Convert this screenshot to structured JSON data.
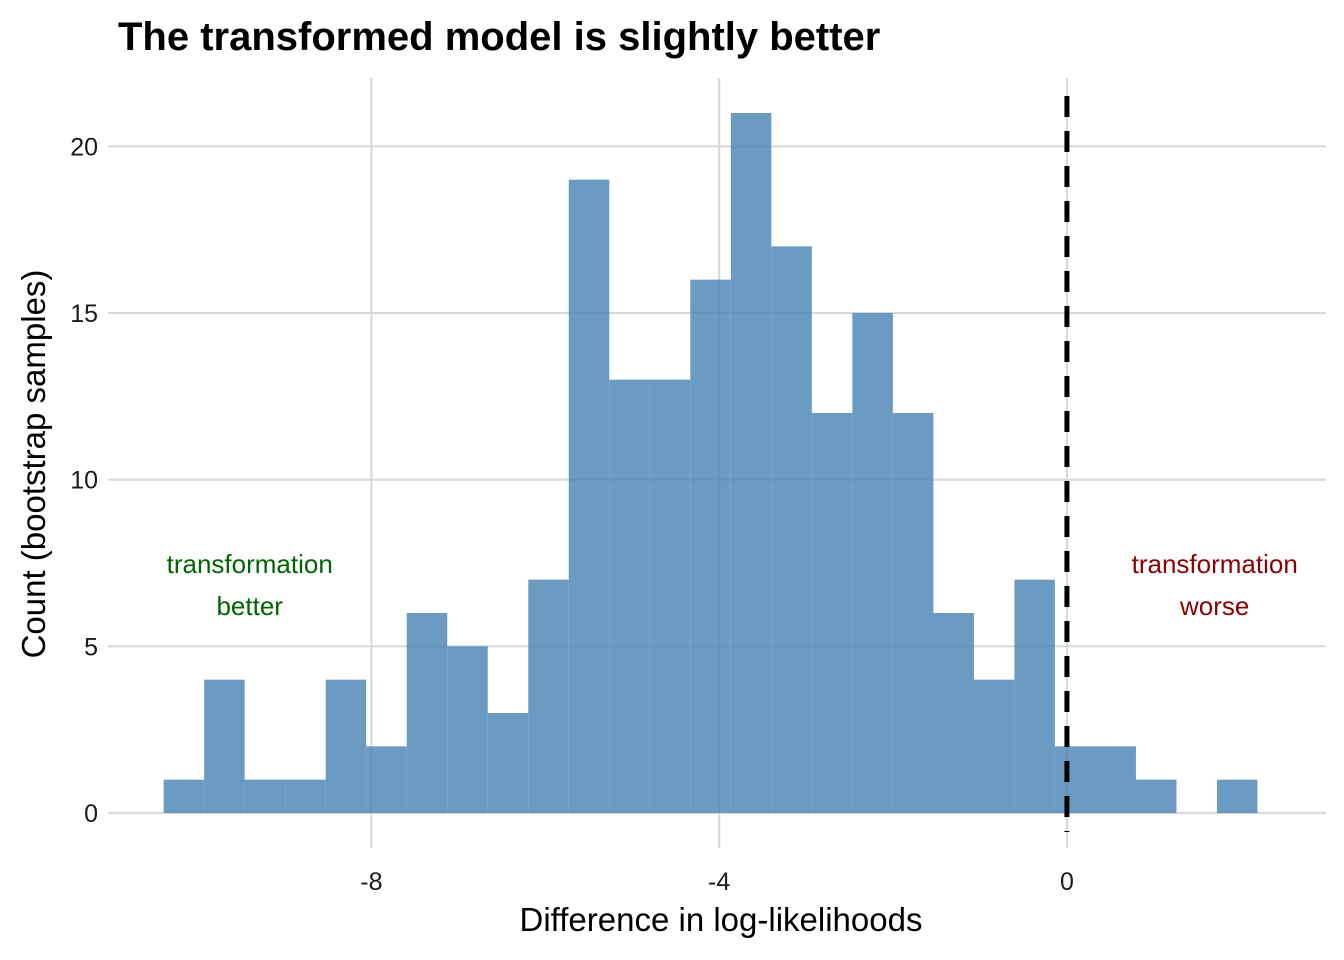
{
  "chart_data": {
    "type": "bar",
    "title": "The transformed model is slightly better",
    "xlabel": "Difference in log-likelihoods",
    "ylabel": "Count (bootstrap samples)",
    "xlim": [
      -11.03,
      2.98
    ],
    "ylim": [
      -1.05,
      22.05
    ],
    "x_ticks": [
      -8,
      -4,
      0
    ],
    "x_tick_labels": [
      "-8",
      "-4",
      "0"
    ],
    "y_ticks": [
      0,
      5,
      10,
      15,
      20
    ],
    "y_tick_labels": [
      "0",
      "5",
      "10",
      "15",
      "20"
    ],
    "grid": true,
    "bin_width": 0.466,
    "bin_left_edges": [
      -10.39,
      -9.924,
      -9.458,
      -8.992,
      -8.526,
      -8.06,
      -7.594,
      -7.128,
      -6.662,
      -6.196,
      -5.73,
      -5.264,
      -4.798,
      -4.332,
      -3.866,
      -3.4,
      -2.934,
      -2.468,
      -2.002,
      -1.536,
      -1.07,
      -0.604,
      -0.138,
      0.328,
      0.794,
      1.26,
      1.726
    ],
    "values": [
      1,
      4,
      1,
      1,
      4,
      2,
      6,
      5,
      3,
      7,
      19,
      13,
      13,
      16,
      21,
      17,
      12,
      15,
      12,
      6,
      4,
      7,
      2,
      2,
      1,
      0,
      1
    ],
    "bar_color": "#4682b4",
    "reference_line": {
      "x": 0,
      "style": "dashed",
      "color": "#000000"
    },
    "annotations": [
      {
        "lines": [
          "transformation",
          "better"
        ],
        "x": -9.4,
        "y": 7.2,
        "color": "#006400"
      },
      {
        "lines": [
          "transformation",
          "worse"
        ],
        "x": 1.7,
        "y": 7.2,
        "color": "#8b0000"
      }
    ]
  }
}
